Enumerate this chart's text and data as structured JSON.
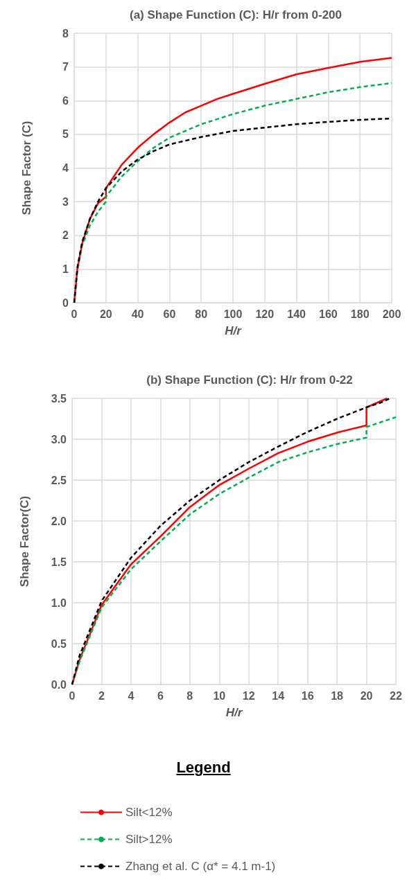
{
  "chart_data": [
    {
      "type": "line",
      "title": "(a) Shape Function (C): H/r from 0-200",
      "xlabel": "H/r",
      "ylabel": "Shape Factor (C)",
      "xlim": [
        0,
        200
      ],
      "xticks": [
        0,
        20,
        40,
        60,
        80,
        100,
        120,
        140,
        160,
        180,
        200
      ],
      "ylim": [
        0,
        8
      ],
      "yticks": [
        0,
        1,
        2,
        3,
        4,
        5,
        6,
        7,
        8
      ],
      "grid": true,
      "legend": false,
      "marker": "none",
      "series": [
        {
          "color": "#ff0000",
          "line_style": "solid",
          "x": [
            0,
            2,
            5,
            10,
            15,
            20,
            20,
            30,
            40,
            50,
            60,
            70,
            80,
            90,
            100,
            120,
            140,
            160,
            180,
            200
          ],
          "values": [
            0,
            1.0,
            1.75,
            2.5,
            2.95,
            3.15,
            3.4,
            4.1,
            4.6,
            5.0,
            5.35,
            5.65,
            5.85,
            6.05,
            6.2,
            6.5,
            6.78,
            6.97,
            7.15,
            7.27
          ]
        },
        {
          "color": "#00b050",
          "line_style": "dashed",
          "x": [
            0,
            2,
            5,
            10,
            15,
            20,
            20,
            30,
            40,
            50,
            60,
            70,
            80,
            100,
            120,
            140,
            160,
            180,
            200
          ],
          "values": [
            0,
            0.95,
            1.7,
            2.3,
            2.7,
            3.0,
            3.15,
            3.75,
            4.2,
            4.6,
            4.9,
            5.1,
            5.3,
            5.6,
            5.85,
            6.05,
            6.25,
            6.4,
            6.52
          ]
        },
        {
          "color": "#000000",
          "line_style": "dashed",
          "x": [
            0,
            2,
            5,
            10,
            15,
            20,
            30,
            40,
            50,
            60,
            80,
            100,
            120,
            140,
            160,
            180,
            200
          ],
          "values": [
            0,
            1.05,
            1.8,
            2.5,
            3.0,
            3.4,
            3.9,
            4.25,
            4.5,
            4.7,
            4.92,
            5.1,
            5.2,
            5.3,
            5.37,
            5.43,
            5.47
          ]
        }
      ]
    },
    {
      "type": "line",
      "title": "(b) Shape Function (C): H/r from 0-22",
      "xlabel": "H/r",
      "ylabel": "Shape Factor(C)",
      "xlim": [
        0,
        22
      ],
      "xticks": [
        0,
        2,
        4,
        6,
        8,
        10,
        12,
        14,
        16,
        18,
        20,
        22
      ],
      "ylim": [
        0,
        3.5
      ],
      "yticks": [
        {
          "value": 0,
          "label": "0.0"
        },
        {
          "value": 0.5,
          "label": "0.5"
        },
        {
          "value": 1,
          "label": "1.0"
        },
        {
          "value": 1.5,
          "label": "1.5"
        },
        {
          "value": 2,
          "label": "2.0"
        },
        {
          "value": 2.5,
          "label": "2.5"
        },
        {
          "value": 3,
          "label": "3.0"
        },
        {
          "value": 3.5,
          "label": "3.5"
        }
      ],
      "grid": true,
      "legend": "bottom",
      "legend_title": "Legend",
      "marker": "none",
      "series": [
        {
          "name": "Silt<12%",
          "color": "#ff0000",
          "line_style": "solid",
          "x": [
            0,
            0.5,
            2,
            4,
            6,
            8,
            10,
            12,
            14,
            16,
            18,
            20,
            20,
            21.4
          ],
          "values": [
            0,
            0.3,
            0.97,
            1.47,
            1.81,
            2.17,
            2.44,
            2.64,
            2.83,
            2.97,
            3.08,
            3.17,
            3.39,
            3.5
          ]
        },
        {
          "name": "Silt>12%",
          "color": "#00b050",
          "line_style": "dashed",
          "x": [
            0,
            0.5,
            2,
            4,
            6,
            8,
            10,
            12,
            14,
            16,
            18,
            20,
            20,
            22
          ],
          "values": [
            0,
            0.28,
            0.94,
            1.41,
            1.75,
            2.08,
            2.33,
            2.53,
            2.72,
            2.84,
            2.94,
            3.02,
            3.15,
            3.27
          ]
        },
        {
          "name": "Zhang et al. C (α* = 4.1 m-1)",
          "color": "#000000",
          "line_style": "dashed",
          "x": [
            0,
            0.5,
            2,
            4,
            6,
            8,
            10,
            12,
            14,
            16,
            18,
            20,
            21,
            21.6
          ],
          "values": [
            0,
            0.35,
            1.02,
            1.55,
            1.94,
            2.25,
            2.5,
            2.72,
            2.91,
            3.09,
            3.25,
            3.39,
            3.45,
            3.5
          ]
        }
      ]
    }
  ]
}
